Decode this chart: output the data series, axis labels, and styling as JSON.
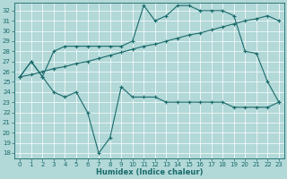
{
  "xlabel": "Humidex (Indice chaleur)",
  "bg_color": "#b2d8d8",
  "line_color": "#1a6b6b",
  "grid_color": "#ffffff",
  "ylim": [
    17.5,
    32.8
  ],
  "xlim": [
    -0.5,
    23.5
  ],
  "yticks": [
    18,
    19,
    20,
    21,
    22,
    23,
    24,
    25,
    26,
    27,
    28,
    29,
    30,
    31,
    32
  ],
  "xticks": [
    0,
    1,
    2,
    3,
    4,
    5,
    6,
    7,
    8,
    9,
    10,
    11,
    12,
    13,
    14,
    15,
    16,
    17,
    18,
    19,
    20,
    21,
    22,
    23
  ],
  "line_upper_x": [
    0,
    1,
    2,
    3,
    4,
    5,
    6,
    7,
    8,
    9,
    10,
    11,
    12,
    13,
    14,
    15,
    16,
    17,
    18,
    19,
    20,
    21,
    22,
    23
  ],
  "line_upper_y": [
    25.5,
    27.0,
    25.5,
    28.0,
    28.5,
    28.5,
    28.5,
    28.5,
    28.5,
    28.5,
    29.0,
    32.5,
    31.0,
    31.5,
    32.5,
    32.5,
    32.0,
    32.0,
    32.0,
    31.5,
    28.0,
    27.8,
    25.0,
    23.0
  ],
  "line_trend_x": [
    0,
    1,
    2,
    3,
    4,
    5,
    6,
    7,
    8,
    9,
    10,
    11,
    12,
    13,
    14,
    15,
    16,
    17,
    18,
    19,
    20,
    21,
    22,
    23
  ],
  "line_trend_y": [
    25.5,
    25.7,
    26.0,
    26.3,
    26.5,
    26.8,
    27.0,
    27.3,
    27.6,
    27.9,
    28.2,
    28.5,
    28.7,
    29.0,
    29.3,
    29.6,
    29.8,
    30.1,
    30.4,
    30.7,
    31.0,
    31.2,
    31.5,
    31.0
  ],
  "line_lower_x": [
    0,
    1,
    2,
    3,
    4,
    5,
    6,
    7,
    8,
    9,
    10,
    11,
    12,
    13,
    14,
    15,
    16,
    17,
    18,
    19,
    20,
    21,
    22,
    23
  ],
  "line_lower_y": [
    25.5,
    27.0,
    25.5,
    24.0,
    23.5,
    24.0,
    22.0,
    18.0,
    19.5,
    24.5,
    23.5,
    23.5,
    23.5,
    23.0,
    23.0,
    23.0,
    23.0,
    23.0,
    23.0,
    22.5,
    22.5,
    22.5,
    22.5,
    23.0
  ]
}
